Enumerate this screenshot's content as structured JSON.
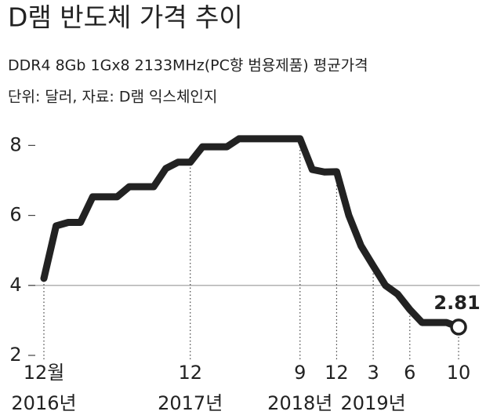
{
  "chart_data": {
    "type": "line",
    "title": "D램 반도체 가격 추이",
    "subtitle": "DDR4 8Gb 1Gx8 2133MHz(PC향 범용제품) 평균가격",
    "note": "단위: 달러, 자료: D램 익스체인지",
    "categories": [
      "12월",
      null,
      null,
      null,
      null,
      null,
      null,
      null,
      null,
      null,
      null,
      null,
      "12",
      null,
      null,
      null,
      null,
      null,
      null,
      null,
      null,
      "9",
      null,
      null,
      "12",
      null,
      null,
      "3",
      null,
      null,
      "6",
      null,
      null,
      null,
      "10"
    ],
    "year_labels": [
      "2016년",
      null,
      null,
      null,
      null,
      null,
      null,
      null,
      null,
      null,
      null,
      null,
      "2017년",
      null,
      null,
      null,
      null,
      null,
      null,
      null,
      null,
      "2018년",
      null,
      null,
      null,
      null,
      null,
      "2019년",
      null,
      null,
      null,
      null,
      null,
      null,
      null
    ],
    "values": [
      4.2,
      5.7,
      5.8,
      5.8,
      6.53,
      6.53,
      6.53,
      6.82,
      6.82,
      6.82,
      7.34,
      7.52,
      7.52,
      7.96,
      7.96,
      7.96,
      8.19,
      8.19,
      8.19,
      8.19,
      8.19,
      8.19,
      7.31,
      7.24,
      7.25,
      6.0,
      5.13,
      4.56,
      4.0,
      3.75,
      3.31,
      2.94,
      2.94,
      2.94,
      2.81
    ],
    "value_labels": [
      null,
      null,
      null,
      null,
      null,
      null,
      null,
      null,
      null,
      null,
      null,
      null,
      null,
      null,
      null,
      null,
      null,
      null,
      null,
      null,
      null,
      null,
      null,
      null,
      null,
      null,
      null,
      null,
      null,
      null,
      null,
      null,
      null,
      null,
      "2.81"
    ],
    "color": "#222222",
    "ylim": [
      2,
      8.6
    ],
    "yticks": [
      2,
      4,
      6,
      8
    ],
    "reference_line": 4
  }
}
